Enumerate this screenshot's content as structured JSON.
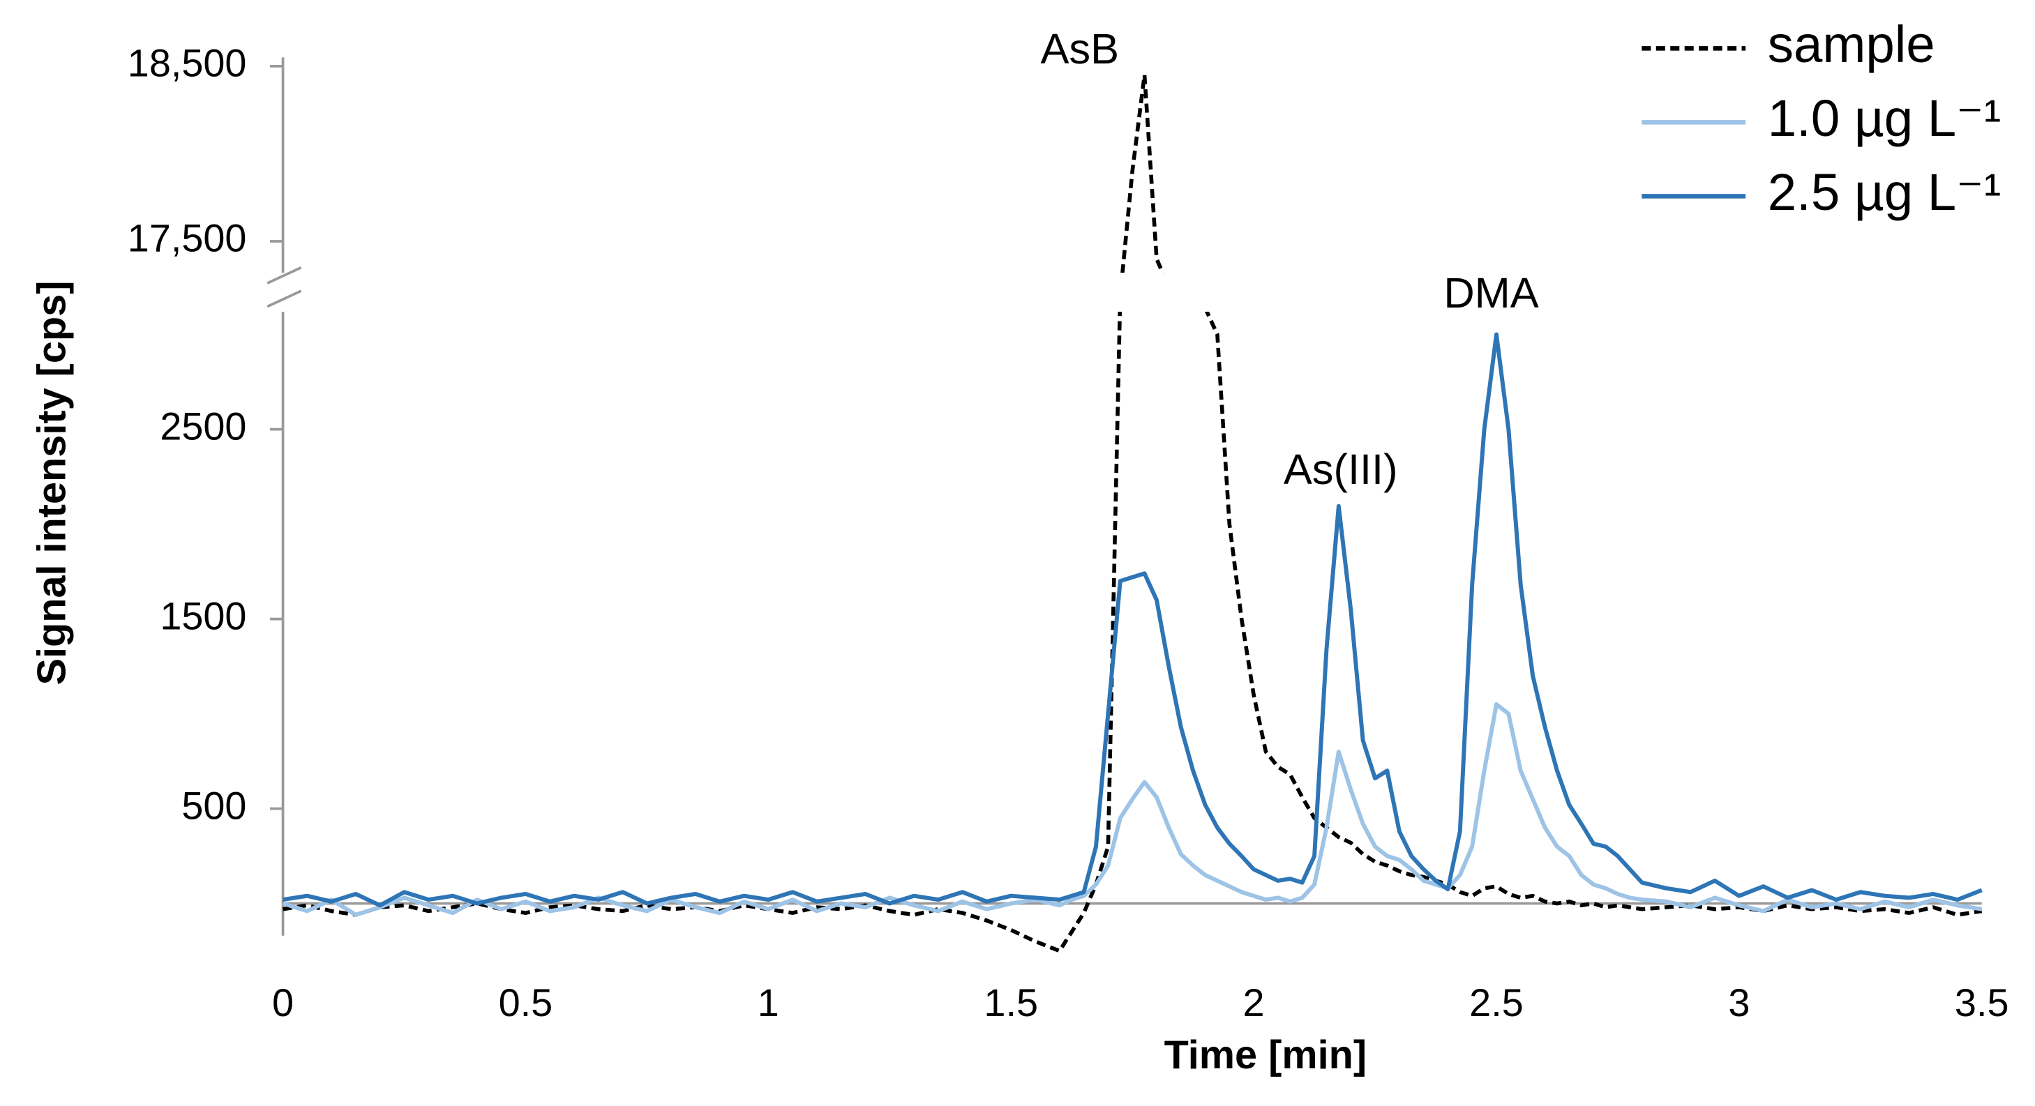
{
  "chart_data": {
    "type": "line",
    "xlabel": "Time [min]",
    "ylabel": "Signal intensity [cps]",
    "annotations": [
      "AsB",
      "As(III)",
      "DMA"
    ],
    "xlim": [
      0,
      3.5
    ],
    "xticks": [
      0,
      0.5,
      1,
      1.5,
      2,
      2.5,
      3,
      3.5
    ],
    "ylim": [
      -170,
      18550
    ],
    "axis_break": [
      3120,
      17320
    ],
    "yticks": [
      500,
      1500,
      2500,
      {
        "value": 17500,
        "label": "17,500"
      },
      {
        "value": 18500,
        "label": "18,500"
      }
    ],
    "legend": "upper right",
    "x": [
      0,
      0.05,
      0.1,
      0.15,
      0.2,
      0.25,
      0.3,
      0.35,
      0.4,
      0.45,
      0.5,
      0.55,
      0.6,
      0.65,
      0.7,
      0.75,
      0.8,
      0.85,
      0.9,
      0.95,
      1,
      1.05,
      1.1,
      1.15,
      1.2,
      1.25,
      1.3,
      1.35,
      1.4,
      1.45,
      1.5,
      1.55,
      1.6,
      1.625,
      1.65,
      1.675,
      1.7,
      1.725,
      1.75,
      1.775,
      1.8,
      1.825,
      1.85,
      1.875,
      1.9,
      1.925,
      1.95,
      1.975,
      2,
      2.025,
      2.05,
      2.075,
      2.1,
      2.125,
      2.15,
      2.175,
      2.2,
      2.225,
      2.25,
      2.275,
      2.3,
      2.325,
      2.35,
      2.375,
      2.4,
      2.425,
      2.45,
      2.475,
      2.5,
      2.525,
      2.55,
      2.575,
      2.6,
      2.625,
      2.65,
      2.675,
      2.7,
      2.725,
      2.75,
      2.775,
      2.8,
      2.85,
      2.9,
      2.95,
      3,
      3.05,
      3.1,
      3.15,
      3.2,
      3.25,
      3.3,
      3.35,
      3.4,
      3.45,
      3.5
    ],
    "series": [
      {
        "name": "sample",
        "color": "#000000",
        "style": "dashed",
        "values": [
          -30,
          -10,
          -40,
          -60,
          -20,
          -10,
          -40,
          -20,
          0,
          -30,
          -50,
          -20,
          -10,
          -30,
          -40,
          -10,
          -30,
          -20,
          -40,
          -10,
          -30,
          -50,
          -20,
          -30,
          -10,
          -40,
          -60,
          -30,
          -50,
          -90,
          -140,
          -200,
          -250,
          -150,
          -50,
          100,
          300,
          9000,
          17900,
          18450,
          17400,
          12000,
          9000,
          6500,
          4500,
          3000,
          2000,
          1500,
          1100,
          800,
          720,
          680,
          560,
          450,
          400,
          350,
          320,
          260,
          220,
          200,
          170,
          150,
          140,
          120,
          100,
          60,
          40,
          80,
          90,
          50,
          30,
          40,
          10,
          0,
          10,
          -10,
          0,
          -20,
          -10,
          -20,
          -30,
          -20,
          -10,
          -30,
          -20,
          -40,
          -10,
          -30,
          -20,
          -40,
          -30,
          -50,
          -20,
          -60,
          -40
        ]
      },
      {
        "name": "1.0 µg L⁻¹",
        "color": "#9dc3e6",
        "style": "solid",
        "values": [
          0,
          -40,
          20,
          -60,
          -20,
          30,
          -10,
          -50,
          20,
          -30,
          10,
          -40,
          -20,
          30,
          -10,
          -40,
          20,
          -20,
          -50,
          10,
          -30,
          20,
          -40,
          0,
          -20,
          30,
          -10,
          -40,
          10,
          -30,
          0,
          20,
          -10,
          20,
          40,
          100,
          200,
          450,
          550,
          640,
          560,
          400,
          260,
          200,
          150,
          120,
          90,
          60,
          40,
          20,
          30,
          10,
          30,
          100,
          400,
          800,
          600,
          420,
          300,
          250,
          230,
          180,
          120,
          100,
          80,
          150,
          300,
          700,
          1050,
          1000,
          700,
          550,
          400,
          300,
          250,
          150,
          100,
          80,
          50,
          30,
          20,
          10,
          -20,
          30,
          -10,
          -40,
          20,
          -20,
          0,
          -30,
          10,
          -20,
          20,
          -10,
          -30
        ]
      },
      {
        "name": "2.5 µg L⁻¹",
        "color": "#2e75b6",
        "style": "solid",
        "values": [
          20,
          40,
          10,
          50,
          -10,
          60,
          20,
          40,
          0,
          30,
          50,
          10,
          40,
          20,
          60,
          0,
          30,
          50,
          10,
          40,
          20,
          60,
          10,
          30,
          50,
          0,
          40,
          20,
          60,
          10,
          40,
          30,
          20,
          40,
          60,
          300,
          1000,
          1700,
          1720,
          1740,
          1600,
          1250,
          930,
          700,
          520,
          400,
          315,
          250,
          180,
          150,
          120,
          130,
          110,
          250,
          1340,
          2095,
          1550,
          860,
          660,
          700,
          380,
          250,
          180,
          120,
          75,
          380,
          1680,
          2500,
          3000,
          2500,
          1680,
          1200,
          930,
          700,
          520,
          420,
          315,
          300,
          250,
          180,
          110,
          80,
          60,
          120,
          40,
          90,
          30,
          70,
          20,
          60,
          40,
          30,
          50,
          20,
          70
        ]
      }
    ]
  }
}
